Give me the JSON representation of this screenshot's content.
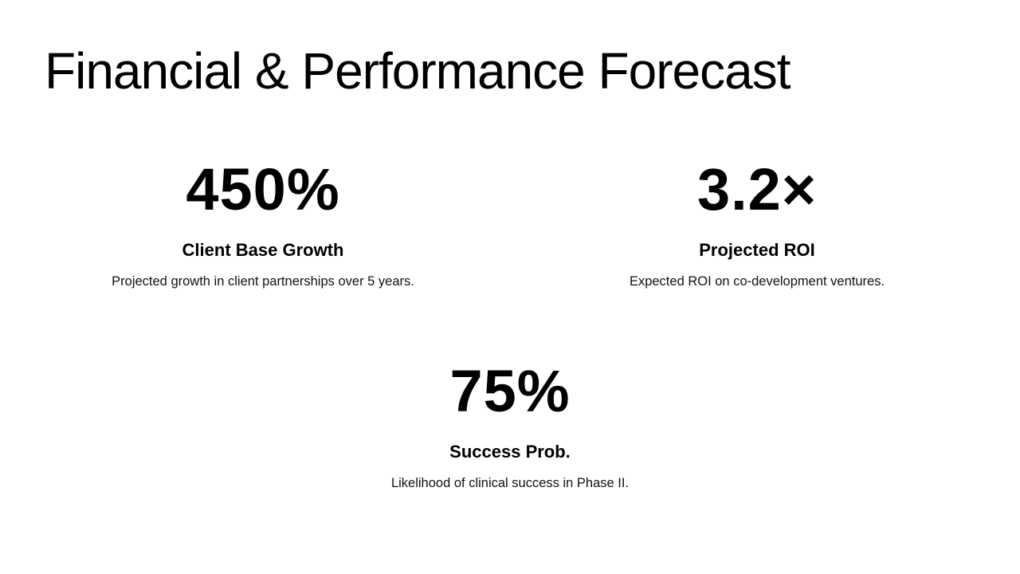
{
  "slide": {
    "title": "Financial & Performance Forecast",
    "stats": [
      {
        "value": "450%",
        "label": "Client Base Growth",
        "description": "Projected growth in client partnerships over 5 years."
      },
      {
        "value": "3.2×",
        "label": "Projected ROI",
        "description": "Expected ROI on co-development ventures."
      },
      {
        "value": "75%",
        "label": "Success Prob.",
        "description": "Likelihood of clinical success in Phase II."
      }
    ]
  },
  "colors": {
    "background": "#ffffff",
    "text": "#000000"
  }
}
